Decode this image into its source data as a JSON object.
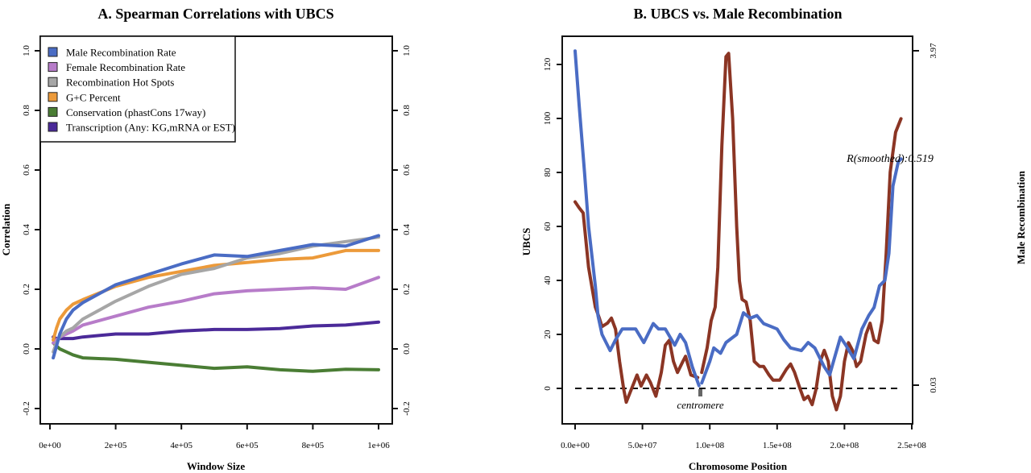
{
  "chart_data": [
    {
      "type": "line",
      "title": "A. Spearman Correlations with UBCS",
      "xlabel": "Window Size",
      "ylabel": "Correlation",
      "xlim": [
        0,
        1000000
      ],
      "ylim": [
        -0.25,
        1.05
      ],
      "xticks": [
        0,
        200000,
        400000,
        600000,
        800000,
        1000000
      ],
      "xtick_labels": [
        "0e+00",
        "2e+05",
        "4e+05",
        "6e+05",
        "8e+05",
        "1e+06"
      ],
      "yticks": [
        -0.2,
        0.0,
        0.2,
        0.4,
        0.6,
        0.8,
        1.0
      ],
      "ytick_labels": [
        "-0.2",
        "0.0",
        "0.2",
        "0.4",
        "0.6",
        "0.8",
        "1.0"
      ],
      "legend_position": "top-left",
      "grid": false,
      "x": [
        10000,
        20000,
        30000,
        50000,
        70000,
        100000,
        200000,
        300000,
        400000,
        500000,
        600000,
        700000,
        800000,
        900000,
        1000000
      ],
      "series": [
        {
          "name": "Male Recombination Rate",
          "color": "#4a6cc4",
          "values": [
            -0.03,
            0.01,
            0.05,
            0.1,
            0.13,
            0.155,
            0.215,
            0.25,
            0.285,
            0.315,
            0.31,
            0.33,
            0.35,
            0.345,
            0.38
          ]
        },
        {
          "name": "Female Recombination Rate",
          "color": "#b77cc9",
          "values": [
            0.02,
            0.03,
            0.04,
            0.05,
            0.06,
            0.08,
            0.11,
            0.14,
            0.16,
            0.185,
            0.195,
            0.2,
            0.205,
            0.2,
            0.24
          ]
        },
        {
          "name": "Recombination Hot Spots",
          "color": "#a6a6a6",
          "values": [
            -0.01,
            0.02,
            0.04,
            0.06,
            0.07,
            0.1,
            0.16,
            0.21,
            0.25,
            0.27,
            0.305,
            0.32,
            0.345,
            0.36,
            0.375
          ]
        },
        {
          "name": "G+C Percent",
          "color": "#ec9a3a",
          "values": [
            0.03,
            0.07,
            0.1,
            0.13,
            0.15,
            0.165,
            0.21,
            0.24,
            0.26,
            0.28,
            0.29,
            0.3,
            0.305,
            0.33,
            0.33
          ]
        },
        {
          "name": "Conservation (phastCons 17way)",
          "color": "#4a7d34",
          "values": [
            0.02,
            0.01,
            0.0,
            -0.01,
            -0.02,
            -0.03,
            -0.035,
            -0.045,
            -0.055,
            -0.065,
            -0.06,
            -0.07,
            -0.075,
            -0.068,
            -0.07
          ]
        },
        {
          "name": "Transcription (Any: KG,mRNA or EST)",
          "color": "#4b2a99",
          "values": [
            0.04,
            0.035,
            0.035,
            0.035,
            0.035,
            0.04,
            0.05,
            0.05,
            0.06,
            0.065,
            0.065,
            0.068,
            0.077,
            0.08,
            0.09
          ]
        }
      ]
    },
    {
      "type": "line",
      "title": "B. UBCS vs. Male Recombination",
      "xlabel": "Chromosome Position",
      "ylabel": "UBCS",
      "ylabel_right": "Male Recombination",
      "xlim": [
        0,
        250000000
      ],
      "ylim": [
        -15,
        130
      ],
      "xticks": [
        0,
        50000000,
        100000000,
        150000000,
        200000000,
        250000000
      ],
      "xtick_labels": [
        "0.0e+00",
        "5.0e+07",
        "1.0e+08",
        "1.5e+08",
        "2.0e+08",
        "2.5e+08"
      ],
      "yticks": [
        0,
        20,
        40,
        60,
        80,
        100,
        120
      ],
      "ytick_labels": [
        "0",
        "20",
        "40",
        "60",
        "80",
        "100",
        "120"
      ],
      "yticks_right": [
        0.03,
        3.97
      ],
      "ytick_labels_right": [
        "0.03",
        "3.97"
      ],
      "annotation": "R(smoothed):0.519",
      "centromere_label": "centromere",
      "centromere_position": 93000000,
      "reference_line": 0,
      "series": [
        {
          "name": "UBCS",
          "axis": "left",
          "color": "#4a6cc4",
          "x": [
            0,
            3,
            7,
            10,
            15,
            17,
            20,
            26,
            30,
            35,
            40,
            45,
            51,
            58,
            62,
            67,
            74,
            78,
            82,
            87,
            92,
            null,
            94,
            100,
            103,
            108,
            112,
            120,
            125,
            130,
            135,
            140,
            145,
            150,
            155,
            160,
            168,
            173,
            178,
            185,
            189,
            193,
            197,
            201,
            207,
            213,
            218,
            222,
            226,
            230,
            233,
            236,
            240,
            242
          ],
          "values": [
            125,
            105,
            80,
            60,
            38,
            27,
            20,
            14,
            18,
            22,
            22,
            22,
            17,
            24,
            22,
            22,
            16,
            20,
            17,
            8,
            1,
            null,
            2,
            10,
            15,
            13,
            17,
            20,
            28,
            26,
            27,
            24,
            23,
            22,
            18,
            15,
            14,
            17,
            15,
            8,
            5,
            12,
            19,
            16,
            11,
            22,
            27,
            30,
            38,
            40,
            50,
            75,
            84,
            85
          ]
        },
        {
          "name": "Male Recombination",
          "axis": "right",
          "color": "#8b3524",
          "x": [
            0,
            3,
            6,
            10,
            15,
            18,
            20,
            24,
            27,
            30,
            33,
            36,
            38,
            42,
            46,
            49,
            53,
            56,
            60,
            64,
            67,
            70,
            73,
            76,
            80,
            82,
            86,
            91,
            null,
            94,
            98,
            101,
            104,
            106,
            109,
            112,
            114,
            117,
            120,
            122,
            124,
            127,
            130,
            133,
            137,
            140,
            144,
            147,
            152,
            157,
            160,
            163,
            167,
            170,
            173,
            176,
            179,
            182,
            185,
            188,
            191,
            194,
            197,
            200,
            203,
            206,
            209,
            212,
            216,
            219,
            222,
            225,
            228,
            231,
            234,
            238,
            242
          ],
          "values": [
            2.19,
            2.12,
            2.06,
            1.42,
            0.95,
            0.82,
            0.72,
            0.76,
            0.82,
            0.69,
            0.31,
            -0.01,
            -0.17,
            -0.01,
            0.15,
            0.02,
            0.15,
            0.06,
            -0.1,
            0.18,
            0.5,
            0.56,
            0.31,
            0.18,
            0.31,
            0.37,
            0.15,
            0.12,
            null,
            0.18,
            0.47,
            0.79,
            0.95,
            1.42,
            2.85,
            3.9,
            3.94,
            3.17,
            1.9,
            1.26,
            1.04,
            1.01,
            0.79,
            0.31,
            0.25,
            0.25,
            0.15,
            0.09,
            0.09,
            0.22,
            0.28,
            0.18,
            -0.01,
            -0.14,
            -0.1,
            -0.2,
            -0.01,
            0.31,
            0.44,
            0.31,
            -0.1,
            -0.26,
            -0.1,
            0.31,
            0.53,
            0.44,
            0.25,
            0.31,
            0.63,
            0.76,
            0.56,
            0.53,
            0.79,
            1.58,
            2.54,
            3.01,
            3.17
          ]
        }
      ],
      "x_units_note": "series x in millions (1e6)"
    }
  ]
}
